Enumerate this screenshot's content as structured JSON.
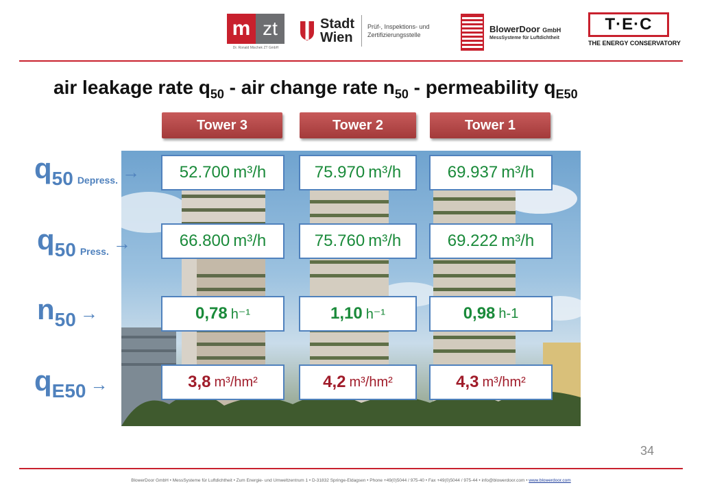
{
  "header": {
    "mzt": {
      "m": "m",
      "zt": "zt",
      "subtitle": "Dr. Ronald Mischek ZT GmbH"
    },
    "wien": {
      "line1": "Stadt",
      "line2": "Wien",
      "sub1": "Prüf-, Inspektions- und",
      "sub2": "Zertifizierungsstelle"
    },
    "blowerdoor": {
      "name": "BlowerDoor",
      "suffix": "GmbH",
      "sub": "MessSysteme für Luftdichtheit"
    },
    "tec": {
      "mark": "T·E·C",
      "sub": "THE ENERGY CONSERVATORY"
    }
  },
  "title": {
    "p1": "air leakage rate q",
    "s1": "50",
    "p2": " - air change rate n",
    "s2": "50",
    "p3": " - permeability q",
    "s3": "E50"
  },
  "towers": [
    "Tower 3",
    "Tower 2",
    "Tower 1"
  ],
  "rows": [
    {
      "symbol": "q",
      "sub": "50",
      "qualifier": "Depress.",
      "arrow": "→",
      "values": [
        {
          "num": "52.700",
          "unit": "m³/h"
        },
        {
          "num": "75.970",
          "unit": "m³/h"
        },
        {
          "num": "69.937",
          "unit": "m³/h"
        }
      ]
    },
    {
      "symbol": "q",
      "sub": "50",
      "qualifier": "Press.",
      "arrow": "→",
      "values": [
        {
          "num": "66.800",
          "unit": "m³/h"
        },
        {
          "num": "75.760",
          "unit": "m³/h"
        },
        {
          "num": "69.222",
          "unit": "m³/h"
        }
      ]
    },
    {
      "symbol": "n",
      "sub": "50",
      "qualifier": "",
      "arrow": "→",
      "values": [
        {
          "num": "0,78",
          "unit": "h⁻¹"
        },
        {
          "num": "1,10",
          "unit": "h⁻¹"
        },
        {
          "num": "0,98",
          "unit": "h-1"
        }
      ]
    },
    {
      "symbol": "q",
      "sub": "E50",
      "qualifier": "",
      "arrow": "→",
      "values": [
        {
          "num": "3,8",
          "unit": "m³/hm²"
        },
        {
          "num": "4,2",
          "unit": "m³/hm²"
        },
        {
          "num": "4,3",
          "unit": "m³/hm²"
        }
      ]
    }
  ],
  "colors": {
    "accent": "#c8202d",
    "label_blue": "#4f81bd",
    "value_green": "#1a8a3a",
    "value_red": "#a01c2a"
  },
  "page_number": "34",
  "footer": {
    "text": "BlowerDoor GmbH • MessSysteme für Luftdichtheit • Zum Energie- und Umweltzentrum 1 • D-31832 Springe-Eldagsen • Phone +49(0)5044 / 975-40 • Fax +49(0)5044 / 975-44 • info@blowerdoor.com • ",
    "link": "www.blowerdoor.com"
  }
}
